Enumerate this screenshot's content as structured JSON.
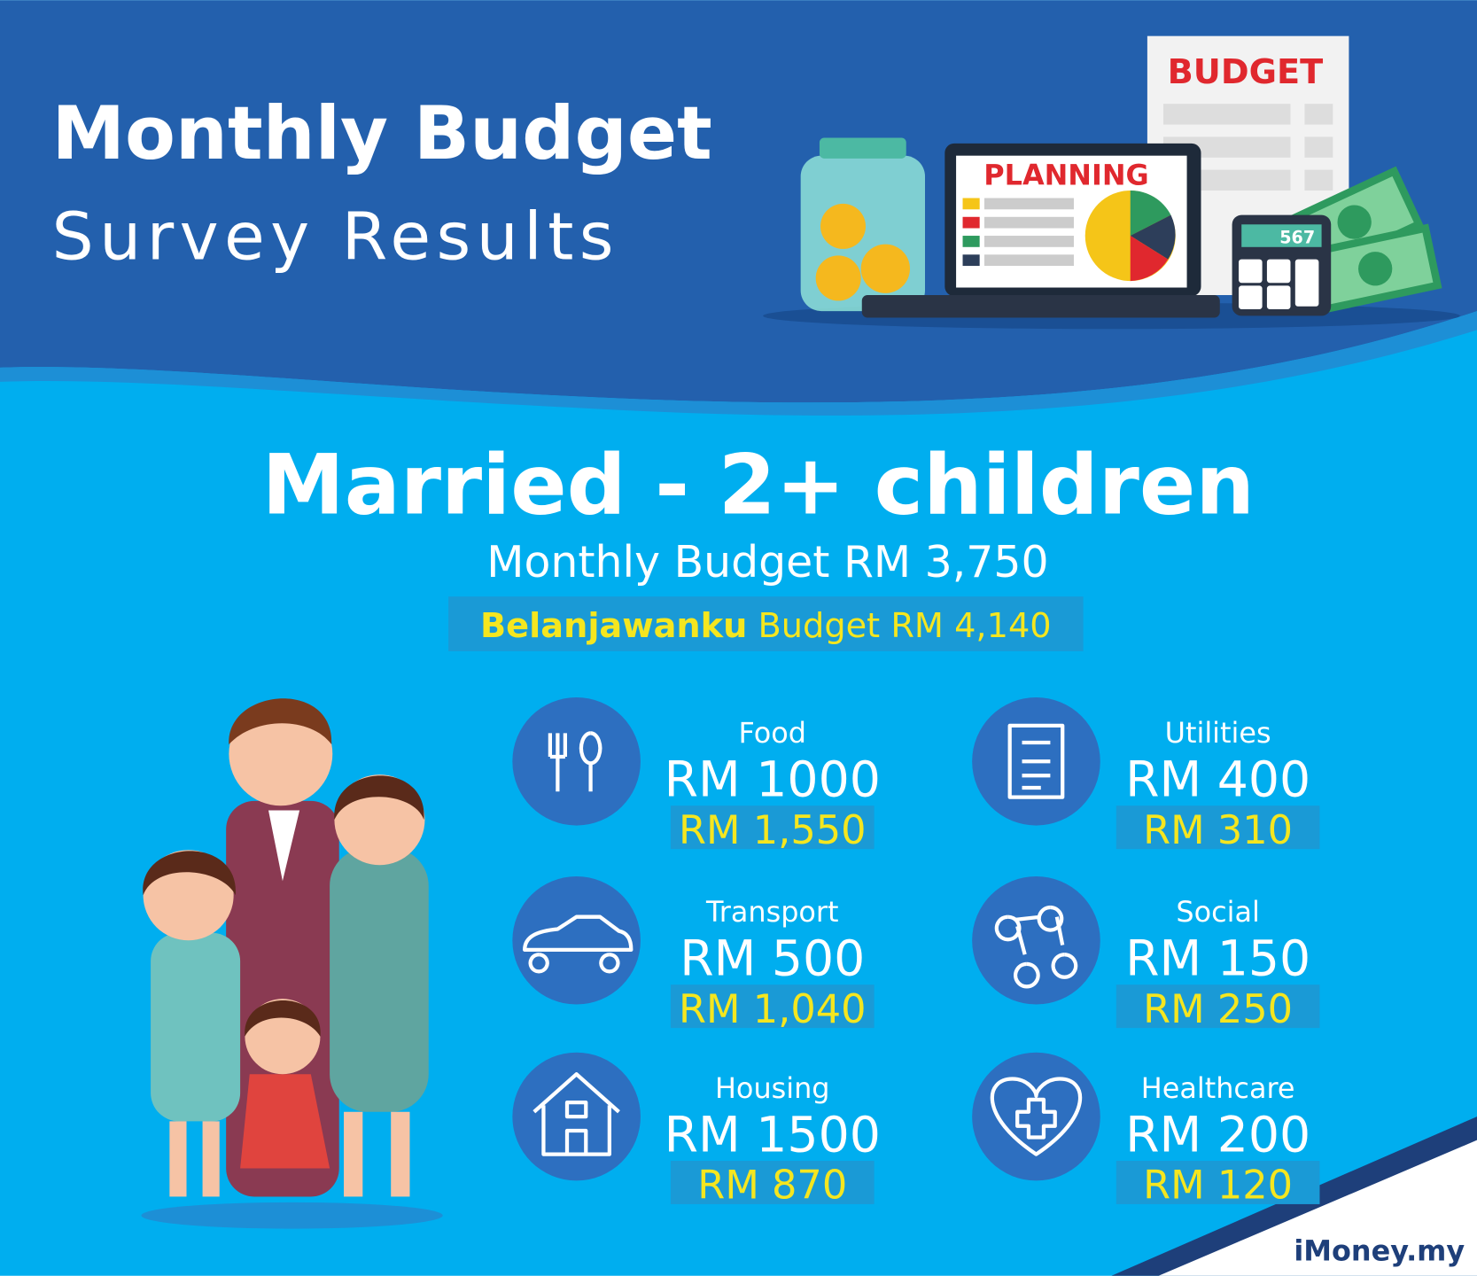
{
  "header": {
    "title_line1": "Monthly Budget",
    "title_line2": "Survey Results",
    "illustration": {
      "document_label": "BUDGET",
      "screen_label": "PLANNING",
      "calculator_display": "567"
    }
  },
  "section": {
    "title": "Married - 2+ children",
    "monthly_budget": "Monthly Budget RM 3,750",
    "belanjawanku_name": "Belanjawanku",
    "belanjawanku_budget": "Budget RM 4,140"
  },
  "items": [
    {
      "label": "Food",
      "survey": "RM 1000",
      "belanjawanku": "RM 1,550"
    },
    {
      "label": "Utilities",
      "survey": "RM 400",
      "belanjawanku": "RM 310"
    },
    {
      "label": "Transport",
      "survey": "RM 500",
      "belanjawanku": "RM 1,040"
    },
    {
      "label": "Social",
      "survey": "RM 150",
      "belanjawanku": "RM 250"
    },
    {
      "label": "Housing",
      "survey": "RM 1500",
      "belanjawanku": "RM 870"
    },
    {
      "label": "Healthcare",
      "survey": "RM 200",
      "belanjawanku": "RM 120"
    }
  ],
  "brand": "iMoney.my"
}
